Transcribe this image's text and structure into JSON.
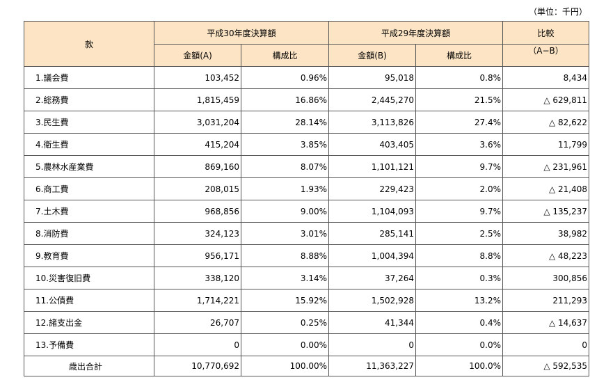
{
  "unit_note": "（単位：千円）",
  "header": {
    "kuan": "款",
    "h30": "平成30年度決算額",
    "h29": "平成29年度決算額",
    "hikaku": "比較",
    "amount_a": "金額(A)",
    "ratio": "構成比",
    "amount_b": "金額(B)",
    "ratio2": "構成比",
    "diff": "（A−B）"
  },
  "rows": [
    {
      "name": "1.議会費",
      "a": "103,452",
      "ra": "0.96%",
      "b": "95,018",
      "rb": "0.8%",
      "diff": "8,434"
    },
    {
      "name": "2.総務費",
      "a": "1,815,459",
      "ra": "16.86%",
      "b": "2,445,270",
      "rb": "21.5%",
      "diff": "△ 629,811"
    },
    {
      "name": "3.民生費",
      "a": "3,031,204",
      "ra": "28.14%",
      "b": "3,113,826",
      "rb": "27.4%",
      "diff": "△ 82,622"
    },
    {
      "name": "4.衛生費",
      "a": "415,204",
      "ra": "3.85%",
      "b": "403,405",
      "rb": "3.6%",
      "diff": "11,799"
    },
    {
      "name": "5.農林水産業費",
      "a": "869,160",
      "ra": "8.07%",
      "b": "1,101,121",
      "rb": "9.7%",
      "diff": "△ 231,961"
    },
    {
      "name": "6.商工費",
      "a": "208,015",
      "ra": "1.93%",
      "b": "229,423",
      "rb": "2.0%",
      "diff": "△ 21,408"
    },
    {
      "name": "7.土木費",
      "a": "968,856",
      "ra": "9.00%",
      "b": "1,104,093",
      "rb": "9.7%",
      "diff": "△ 135,237"
    },
    {
      "name": "8.消防費",
      "a": "324,123",
      "ra": "3.01%",
      "b": "285,141",
      "rb": "2.5%",
      "diff": "38,982"
    },
    {
      "name": "9.教育費",
      "a": "956,171",
      "ra": "8.88%",
      "b": "1,004,394",
      "rb": "8.8%",
      "diff": "△ 48,223"
    },
    {
      "name": "10.災害復旧費",
      "a": "338,120",
      "ra": "3.14%",
      "b": "37,264",
      "rb": "0.3%",
      "diff": "300,856"
    },
    {
      "name": "11.公債費",
      "a": "1,714,221",
      "ra": "15.92%",
      "b": "1,502,928",
      "rb": "13.2%",
      "diff": "211,293"
    },
    {
      "name": "12.諸支出金",
      "a": "26,707",
      "ra": "0.25%",
      "b": "41,344",
      "rb": "0.4%",
      "diff": "△ 14,637"
    },
    {
      "name": "13.予備費",
      "a": "0",
      "ra": "0.00%",
      "b": "0",
      "rb": "0.0%",
      "diff": "0"
    }
  ],
  "total": {
    "name": "歳出合計",
    "a": "10,770,692",
    "ra": "100.00%",
    "b": "11,363,227",
    "rb": "100.0%",
    "diff": "△ 592,535"
  }
}
